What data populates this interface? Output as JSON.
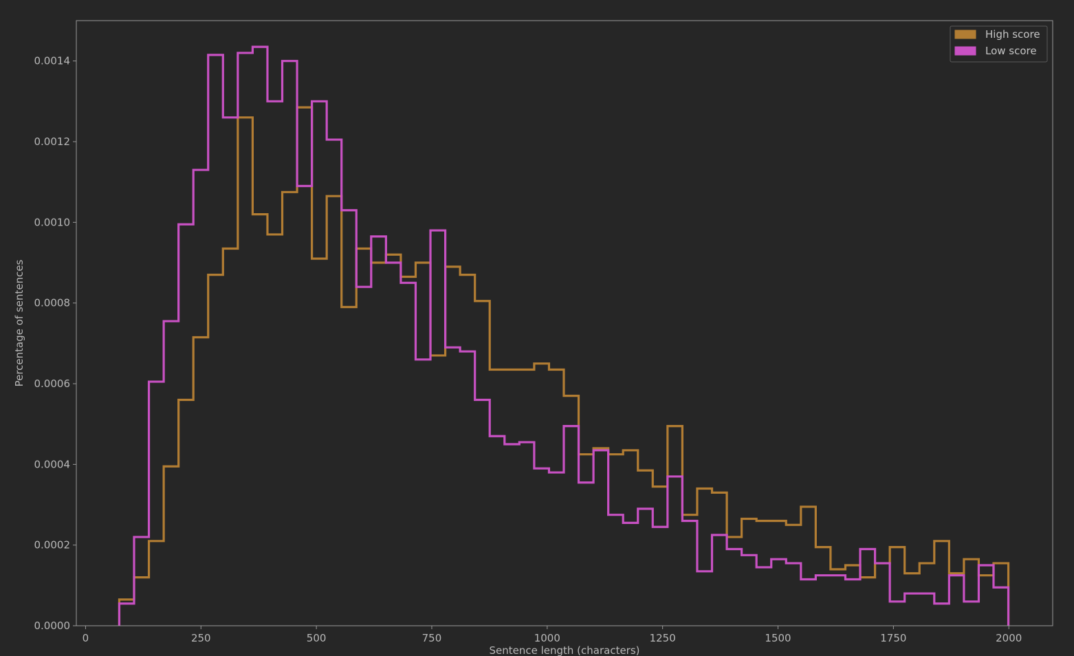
{
  "chart_data": {
    "type": "histogram-step",
    "xlabel": "Sentence length (characters)",
    "ylabel": "Percentage of sentences",
    "xlim": [
      -20,
      2095
    ],
    "ylim": [
      0,
      0.0015
    ],
    "xticks": [
      "0",
      "250",
      "500",
      "750",
      "1000",
      "1250",
      "1500",
      "1750",
      "2000"
    ],
    "yticks": [
      "0.0000",
      "0.0002",
      "0.0004",
      "0.0006",
      "0.0008",
      "0.0010",
      "0.0012",
      "0.0014"
    ],
    "grid": false,
    "legend_position": "top-right",
    "bins": {
      "start": 73,
      "width": 32.1,
      "count": 60
    },
    "series": [
      {
        "name": "High score",
        "color": "#b27d33",
        "values": [
          6.5e-05,
          0.00012,
          0.00021,
          0.000395,
          0.00056,
          0.000715,
          0.00087,
          0.000935,
          0.00126,
          0.00102,
          0.00097,
          0.001075,
          0.001285,
          0.00091,
          0.001065,
          0.00079,
          0.000935,
          0.0009,
          0.00092,
          0.000865,
          0.0009,
          0.00067,
          0.00089,
          0.00087,
          0.000805,
          0.000635,
          0.000635,
          0.000635,
          0.00065,
          0.000635,
          0.00057,
          0.000425,
          0.00044,
          0.000425,
          0.000435,
          0.000385,
          0.000345,
          0.000495,
          0.000275,
          0.00034,
          0.00033,
          0.00022,
          0.000265,
          0.00026,
          0.00026,
          0.00025,
          0.000295,
          0.000195,
          0.00014,
          0.00015,
          0.00012,
          0.000155,
          0.000195,
          0.00013,
          0.000155,
          0.00021,
          0.00013,
          0.000165,
          0.000125,
          0.000155
        ]
      },
      {
        "name": "Low score",
        "color": "#c851c3",
        "values": [
          5.5e-05,
          0.00022,
          0.000605,
          0.000755,
          0.000995,
          0.00113,
          0.001415,
          0.00126,
          0.00142,
          0.001435,
          0.0013,
          0.0014,
          0.00109,
          0.0013,
          0.001205,
          0.00103,
          0.00084,
          0.000965,
          0.0009,
          0.00085,
          0.00066,
          0.00098,
          0.00069,
          0.00068,
          0.00056,
          0.00047,
          0.00045,
          0.000455,
          0.00039,
          0.00038,
          0.000495,
          0.000355,
          0.000435,
          0.000275,
          0.000255,
          0.00029,
          0.000245,
          0.00037,
          0.00026,
          0.000135,
          0.000225,
          0.00019,
          0.000175,
          0.000145,
          0.000165,
          0.000155,
          0.000115,
          0.000125,
          0.000125,
          0.000115,
          0.00019,
          0.000155,
          6e-05,
          8e-05,
          8e-05,
          5.5e-05,
          0.000125,
          6e-05,
          0.00015,
          9.5e-05
        ]
      }
    ]
  }
}
